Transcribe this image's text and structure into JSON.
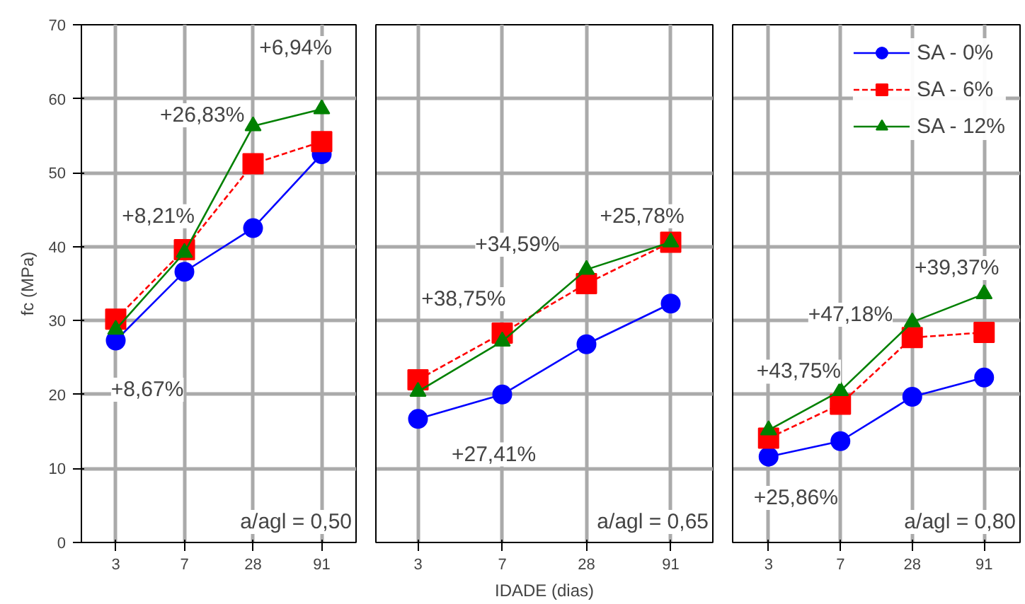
{
  "chart_data": [
    {
      "type": "line",
      "ylabel": "fc (MPa)",
      "categories": [
        "3",
        "7",
        "28",
        "91"
      ],
      "ylim": [
        0,
        70
      ],
      "yticks": [
        0,
        10,
        20,
        30,
        40,
        50,
        60,
        70
      ],
      "grid": true,
      "legend": false,
      "series": [
        {
          "color": "#0000ff",
          "marker": "circle",
          "line_style": "solid",
          "values": [
            27.3,
            36.6,
            42.5,
            52.5
          ]
        },
        {
          "color": "#ff0000",
          "marker": "square",
          "line_style": "dashed",
          "values": [
            30.2,
            39.6,
            51.2,
            54.2
          ]
        },
        {
          "color": "#008000",
          "marker": "triangle",
          "line_style": "solid",
          "values": [
            28.8,
            39.2,
            56.3,
            58.6
          ]
        }
      ],
      "annotations": [
        "+8,21%",
        "+26,83%",
        "+6,94%",
        "+8,67%",
        "a/agl = 0,50"
      ]
    },
    {
      "type": "line",
      "xlabel": "IDADE (dias)",
      "categories": [
        "3",
        "7",
        "28",
        "91"
      ],
      "ylim": [
        0,
        70
      ],
      "yticks": [
        0,
        10,
        20,
        30,
        40,
        50,
        60,
        70
      ],
      "grid": true,
      "legend": false,
      "tick_labels": "x",
      "series": [
        {
          "color": "#0000ff",
          "marker": "circle",
          "line_style": "solid",
          "values": [
            16.7,
            20.0,
            26.8,
            32.3
          ]
        },
        {
          "color": "#ff0000",
          "marker": "square",
          "line_style": "dashed",
          "values": [
            22.0,
            28.3,
            35.0,
            40.6
          ]
        },
        {
          "color": "#008000",
          "marker": "triangle",
          "line_style": "solid",
          "values": [
            20.4,
            27.2,
            36.9,
            40.6
          ]
        }
      ],
      "annotations": [
        "+38,75%",
        "+34,59%",
        "+25,78%",
        "+27,41%",
        "a/agl = 0,65"
      ]
    },
    {
      "type": "line",
      "categories": [
        "3",
        "7",
        "28",
        "91"
      ],
      "ylim": [
        0,
        70
      ],
      "yticks": [
        0,
        10,
        20,
        30,
        40,
        50,
        60,
        70
      ],
      "grid": true,
      "legend": "top right",
      "tick_labels": "x",
      "series": [
        {
          "name": "SA - 0%",
          "color": "#0000ff",
          "marker": "circle",
          "line_style": "solid",
          "values": [
            11.6,
            13.7,
            19.7,
            22.3
          ]
        },
        {
          "name": "SA - 6%",
          "color": "#ff0000",
          "marker": "square",
          "line_style": "dashed",
          "values": [
            14.1,
            18.7,
            27.7,
            28.4
          ]
        },
        {
          "name": "SA - 12%",
          "color": "#008000",
          "marker": "triangle",
          "line_style": "solid",
          "values": [
            15.2,
            20.5,
            29.8,
            33.6
          ]
        }
      ],
      "annotations": [
        "+43,75%",
        "+47,18%",
        "+39,37%",
        "+25,86%",
        "a/agl = 0,80"
      ]
    }
  ]
}
